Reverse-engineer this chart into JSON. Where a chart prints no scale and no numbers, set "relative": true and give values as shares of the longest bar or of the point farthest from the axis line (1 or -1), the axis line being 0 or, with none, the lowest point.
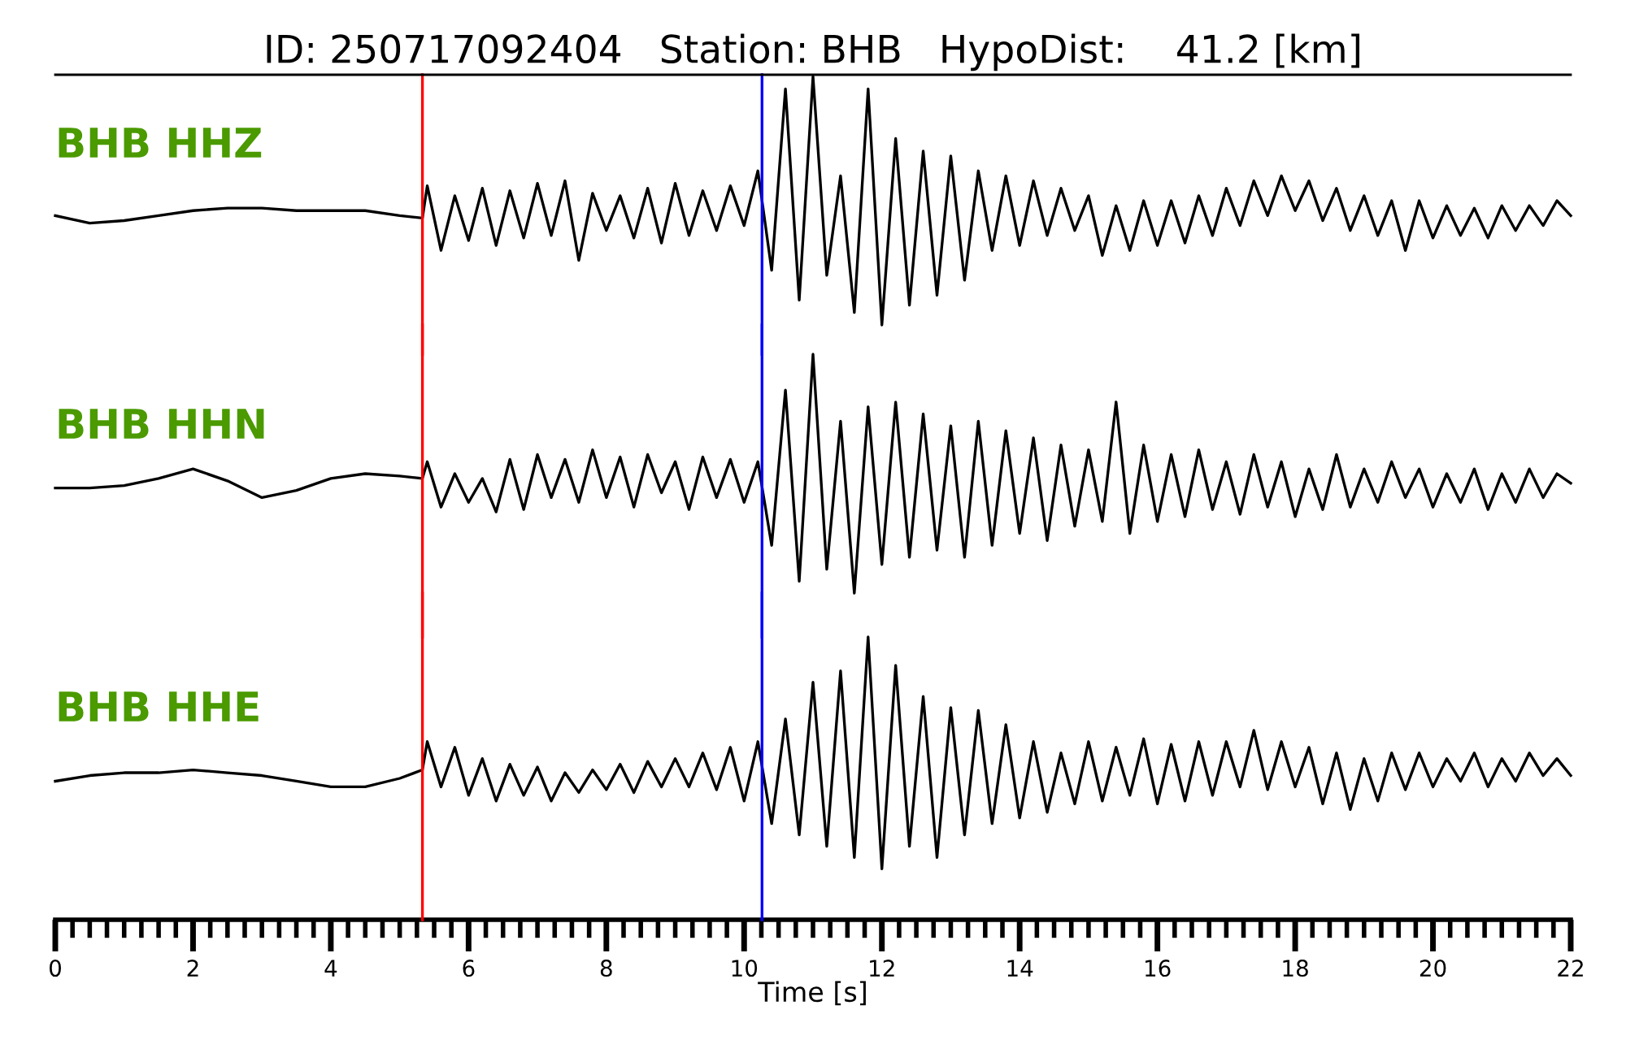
{
  "chart_data": [
    {
      "type": "line",
      "title": "ID: 250717092404   Station: BHB   HypoDist:    41.2 [km]",
      "annotations": [
        "BHB HHZ"
      ],
      "relative": true,
      "xlim": [
        0,
        22
      ],
      "xticks": [
        0,
        2,
        4,
        6,
        8,
        10,
        12,
        14,
        16,
        18,
        20,
        22
      ],
      "tick_labels": false,
      "x": [
        0,
        0.5,
        1,
        1.5,
        2,
        2.5,
        3,
        3.5,
        4,
        4.5,
        5,
        5.33,
        5.4,
        5.6,
        5.8,
        6,
        6.2,
        6.4,
        6.6,
        6.8,
        7,
        7.2,
        7.4,
        7.6,
        7.8,
        8,
        8.2,
        8.4,
        8.6,
        8.8,
        9,
        9.2,
        9.4,
        9.6,
        9.8,
        10,
        10.2,
        10.4,
        10.6,
        10.8,
        11,
        11.2,
        11.4,
        11.6,
        11.8,
        12,
        12.2,
        12.4,
        12.6,
        12.8,
        13,
        13.2,
        13.4,
        13.6,
        13.8,
        14,
        14.2,
        14.4,
        14.6,
        14.8,
        15,
        15.2,
        15.4,
        15.6,
        15.8,
        16,
        16.2,
        16.4,
        16.6,
        16.8,
        17,
        17.2,
        17.4,
        17.6,
        17.8,
        18,
        18.2,
        18.4,
        18.6,
        18.8,
        19,
        19.2,
        19.4,
        19.6,
        19.8,
        20,
        20.2,
        20.4,
        20.6,
        20.8,
        21,
        21.2,
        21.4,
        21.6,
        21.8,
        22
      ],
      "series": [
        {
          "color": "#000000",
          "values": [
            0.44,
            0.41,
            0.42,
            0.44,
            0.46,
            0.47,
            0.47,
            0.46,
            0.46,
            0.46,
            0.44,
            0.43,
            0.56,
            0.3,
            0.52,
            0.34,
            0.55,
            0.32,
            0.54,
            0.35,
            0.57,
            0.36,
            0.58,
            0.26,
            0.53,
            0.38,
            0.52,
            0.35,
            0.55,
            0.33,
            0.57,
            0.36,
            0.54,
            0.38,
            0.56,
            0.4,
            0.62,
            0.22,
            0.95,
            0.1,
            1.0,
            0.2,
            0.6,
            0.05,
            0.95,
            0.0,
            0.75,
            0.08,
            0.7,
            0.12,
            0.68,
            0.18,
            0.62,
            0.3,
            0.6,
            0.32,
            0.58,
            0.36,
            0.55,
            0.38,
            0.52,
            0.28,
            0.48,
            0.3,
            0.5,
            0.32,
            0.5,
            0.33,
            0.52,
            0.36,
            0.55,
            0.4,
            0.58,
            0.44,
            0.6,
            0.46,
            0.58,
            0.42,
            0.55,
            0.38,
            0.52,
            0.36,
            0.5,
            0.3,
            0.5,
            0.35,
            0.48,
            0.36,
            0.47,
            0.35,
            0.48,
            0.38,
            0.48,
            0.4,
            0.5,
            0.44
          ]
        }
      ],
      "ref_lines": [
        {
          "axis": "x",
          "value": 5.33,
          "color": "#ff0000"
        },
        {
          "axis": "x",
          "value": 10.26,
          "color": "#0000ff"
        }
      ]
    },
    {
      "type": "line",
      "annotations": [
        "BHB HHN"
      ],
      "relative": true,
      "xlim": [
        0,
        22
      ],
      "xticks": [
        0,
        2,
        4,
        6,
        8,
        10,
        12,
        14,
        16,
        18,
        20,
        22
      ],
      "tick_labels": false,
      "x": [
        0,
        0.5,
        1,
        1.5,
        2,
        2.5,
        3,
        3.5,
        4,
        4.5,
        5,
        5.33,
        5.4,
        5.6,
        5.8,
        6,
        6.2,
        6.4,
        6.6,
        6.8,
        7,
        7.2,
        7.4,
        7.6,
        7.8,
        8,
        8.2,
        8.4,
        8.6,
        8.8,
        9,
        9.2,
        9.4,
        9.6,
        9.8,
        10,
        10.2,
        10.4,
        10.6,
        10.8,
        11,
        11.2,
        11.4,
        11.6,
        11.8,
        12,
        12.2,
        12.4,
        12.6,
        12.8,
        13,
        13.2,
        13.4,
        13.6,
        13.8,
        14,
        14.2,
        14.4,
        14.6,
        14.8,
        15,
        15.2,
        15.4,
        15.6,
        15.8,
        16,
        16.2,
        16.4,
        16.6,
        16.8,
        17,
        17.2,
        17.4,
        17.6,
        17.8,
        18,
        18.2,
        18.4,
        18.6,
        18.8,
        19,
        19.2,
        19.4,
        19.6,
        19.8,
        20,
        20.2,
        20.4,
        20.6,
        20.8,
        21,
        21.2,
        21.4,
        21.6,
        21.8,
        22
      ],
      "series": [
        {
          "color": "#000000",
          "values": [
            0.44,
            0.44,
            0.45,
            0.48,
            0.52,
            0.47,
            0.4,
            0.43,
            0.48,
            0.5,
            0.49,
            0.48,
            0.55,
            0.36,
            0.5,
            0.38,
            0.48,
            0.34,
            0.56,
            0.35,
            0.58,
            0.4,
            0.56,
            0.38,
            0.6,
            0.4,
            0.57,
            0.36,
            0.58,
            0.42,
            0.55,
            0.35,
            0.57,
            0.4,
            0.56,
            0.38,
            0.55,
            0.2,
            0.85,
            0.05,
            1.0,
            0.1,
            0.72,
            0.0,
            0.78,
            0.12,
            0.8,
            0.15,
            0.75,
            0.18,
            0.7,
            0.15,
            0.72,
            0.2,
            0.68,
            0.25,
            0.65,
            0.22,
            0.62,
            0.28,
            0.6,
            0.3,
            0.8,
            0.25,
            0.62,
            0.3,
            0.58,
            0.32,
            0.6,
            0.35,
            0.55,
            0.33,
            0.58,
            0.36,
            0.55,
            0.32,
            0.52,
            0.35,
            0.58,
            0.36,
            0.52,
            0.38,
            0.55,
            0.4,
            0.52,
            0.36,
            0.5,
            0.38,
            0.52,
            0.35,
            0.5,
            0.38,
            0.52,
            0.4,
            0.5,
            0.46
          ]
        }
      ],
      "ref_lines": [
        {
          "axis": "x",
          "value": 5.33,
          "color": "#ff0000"
        },
        {
          "axis": "x",
          "value": 10.26,
          "color": "#0000ff"
        }
      ]
    },
    {
      "type": "line",
      "xlabel": "Time [s]",
      "annotations": [
        "BHB HHE"
      ],
      "relative": true,
      "xlim": [
        0,
        22
      ],
      "xticks": [
        0,
        2,
        4,
        6,
        8,
        10,
        12,
        14,
        16,
        18,
        20,
        22
      ],
      "x": [
        0,
        0.5,
        1,
        1.5,
        2,
        2.5,
        3,
        3.5,
        4,
        4.5,
        5,
        5.33,
        5.4,
        5.6,
        5.8,
        6,
        6.2,
        6.4,
        6.6,
        6.8,
        7,
        7.2,
        7.4,
        7.6,
        7.8,
        8,
        8.2,
        8.4,
        8.6,
        8.8,
        9,
        9.2,
        9.4,
        9.6,
        9.8,
        10,
        10.2,
        10.4,
        10.6,
        10.8,
        11,
        11.2,
        11.4,
        11.6,
        11.8,
        12,
        12.2,
        12.4,
        12.6,
        12.8,
        13,
        13.2,
        13.4,
        13.6,
        13.8,
        14,
        14.2,
        14.4,
        14.6,
        14.8,
        15,
        15.2,
        15.4,
        15.6,
        15.8,
        16,
        16.2,
        16.4,
        16.6,
        16.8,
        17,
        17.2,
        17.4,
        17.6,
        17.8,
        18,
        18.2,
        18.4,
        18.6,
        18.8,
        19,
        19.2,
        19.4,
        19.6,
        19.8,
        20,
        20.2,
        20.4,
        20.6,
        20.8,
        21,
        21.2,
        21.4,
        21.6,
        21.8,
        22
      ],
      "series": [
        {
          "color": "#000000",
          "values": [
            0.49,
            0.51,
            0.52,
            0.52,
            0.53,
            0.52,
            0.51,
            0.49,
            0.47,
            0.47,
            0.5,
            0.53,
            0.63,
            0.47,
            0.61,
            0.44,
            0.57,
            0.42,
            0.55,
            0.44,
            0.54,
            0.42,
            0.52,
            0.45,
            0.53,
            0.46,
            0.55,
            0.45,
            0.56,
            0.47,
            0.57,
            0.47,
            0.59,
            0.46,
            0.61,
            0.42,
            0.63,
            0.34,
            0.71,
            0.3,
            0.84,
            0.26,
            0.88,
            0.22,
            1.0,
            0.18,
            0.9,
            0.26,
            0.79,
            0.22,
            0.75,
            0.3,
            0.74,
            0.34,
            0.69,
            0.36,
            0.63,
            0.38,
            0.59,
            0.41,
            0.63,
            0.42,
            0.61,
            0.44,
            0.64,
            0.41,
            0.62,
            0.42,
            0.63,
            0.44,
            0.63,
            0.47,
            0.67,
            0.46,
            0.63,
            0.47,
            0.61,
            0.41,
            0.59,
            0.39,
            0.57,
            0.42,
            0.59,
            0.46,
            0.59,
            0.47,
            0.57,
            0.49,
            0.59,
            0.47,
            0.57,
            0.49,
            0.59,
            0.51,
            0.57,
            0.51
          ]
        }
      ],
      "ref_lines": [
        {
          "axis": "x",
          "value": 5.33,
          "color": "#ff0000"
        },
        {
          "axis": "x",
          "value": 10.26,
          "color": "#0000ff"
        }
      ]
    }
  ]
}
